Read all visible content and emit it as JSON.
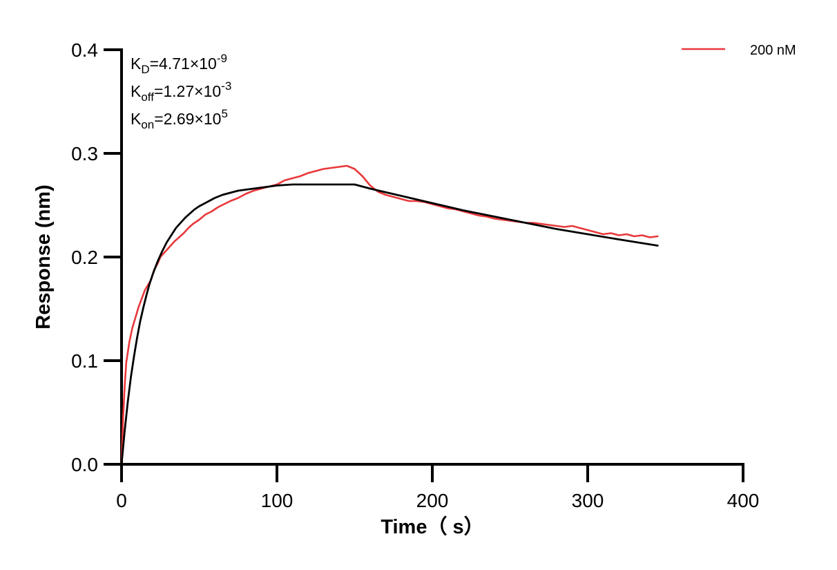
{
  "chart_data": {
    "type": "line",
    "xlabel": "Time（ s）",
    "ylabel": "Response (nm)",
    "xlim": [
      0,
      400
    ],
    "ylim": [
      0,
      0.4
    ],
    "x_ticks": [
      0,
      100,
      200,
      300,
      400
    ],
    "x_tick_labels": [
      "0",
      "100",
      "200",
      "300",
      "400"
    ],
    "y_ticks": [
      0,
      0.1,
      0.2,
      0.3,
      0.4
    ],
    "y_tick_labels": [
      "0.0",
      "0.1",
      "0.2",
      "0.3",
      "0.4"
    ],
    "grid": false,
    "legend_position": "top-right",
    "annotations": [
      {
        "main": "K",
        "sub": "D",
        "rest": "=4.71×10",
        "sup": "-9"
      },
      {
        "main": "K",
        "sub": "off",
        "rest": "=1.27×10",
        "sup": "-3"
      },
      {
        "main": "K",
        "sub": "on",
        "rest": "=2.69×10",
        "sup": "5"
      }
    ],
    "series": [
      {
        "name": "200 nM",
        "color": "#e8373a",
        "x": [
          0,
          1,
          2,
          3,
          5,
          7,
          9,
          11,
          13,
          15,
          17,
          19,
          21,
          23,
          25,
          28,
          31,
          34,
          37,
          40,
          43,
          46,
          50,
          54,
          58,
          62,
          66,
          70,
          75,
          80,
          85,
          90,
          95,
          100,
          105,
          110,
          115,
          120,
          125,
          130,
          135,
          140,
          145,
          150,
          155,
          160,
          165,
          170,
          175,
          180,
          185,
          190,
          195,
          200,
          205,
          210,
          215,
          220,
          225,
          230,
          235,
          240,
          245,
          250,
          255,
          260,
          265,
          270,
          275,
          280,
          285,
          290,
          295,
          300,
          305,
          310,
          315,
          320,
          325,
          330,
          335,
          340,
          345
        ],
        "y": [
          0.0,
          0.045,
          0.075,
          0.098,
          0.118,
          0.132,
          0.142,
          0.152,
          0.16,
          0.168,
          0.173,
          0.178,
          0.188,
          0.193,
          0.2,
          0.205,
          0.21,
          0.215,
          0.219,
          0.223,
          0.228,
          0.232,
          0.236,
          0.241,
          0.244,
          0.248,
          0.251,
          0.254,
          0.257,
          0.261,
          0.264,
          0.266,
          0.268,
          0.27,
          0.274,
          0.276,
          0.278,
          0.281,
          0.283,
          0.285,
          0.286,
          0.287,
          0.288,
          0.285,
          0.278,
          0.269,
          0.263,
          0.26,
          0.258,
          0.256,
          0.254,
          0.254,
          0.253,
          0.251,
          0.249,
          0.247,
          0.246,
          0.244,
          0.242,
          0.24,
          0.239,
          0.237,
          0.236,
          0.235,
          0.234,
          0.233,
          0.233,
          0.232,
          0.231,
          0.23,
          0.229,
          0.23,
          0.228,
          0.226,
          0.224,
          0.222,
          0.223,
          0.221,
          0.222,
          0.22,
          0.221,
          0.219,
          0.22
        ]
      },
      {
        "color": "#000000",
        "x": [
          0,
          2,
          4,
          6,
          8,
          10,
          12,
          14,
          16,
          18,
          20,
          23,
          26,
          29,
          32,
          35,
          38,
          41,
          44,
          47,
          50,
          55,
          60,
          65,
          70,
          75,
          80,
          90,
          100,
          110,
          120,
          130,
          140,
          150,
          160,
          180,
          200,
          220,
          240,
          260,
          280,
          300,
          320,
          345
        ],
        "y": [
          0.0,
          0.032,
          0.06,
          0.084,
          0.104,
          0.122,
          0.138,
          0.151,
          0.163,
          0.174,
          0.183,
          0.195,
          0.205,
          0.214,
          0.221,
          0.228,
          0.233,
          0.238,
          0.242,
          0.246,
          0.249,
          0.253,
          0.257,
          0.26,
          0.262,
          0.264,
          0.265,
          0.267,
          0.269,
          0.27,
          0.27,
          0.27,
          0.27,
          0.27,
          0.266,
          0.259,
          0.252,
          0.245,
          0.239,
          0.233,
          0.227,
          0.222,
          0.217,
          0.211
        ]
      }
    ]
  }
}
